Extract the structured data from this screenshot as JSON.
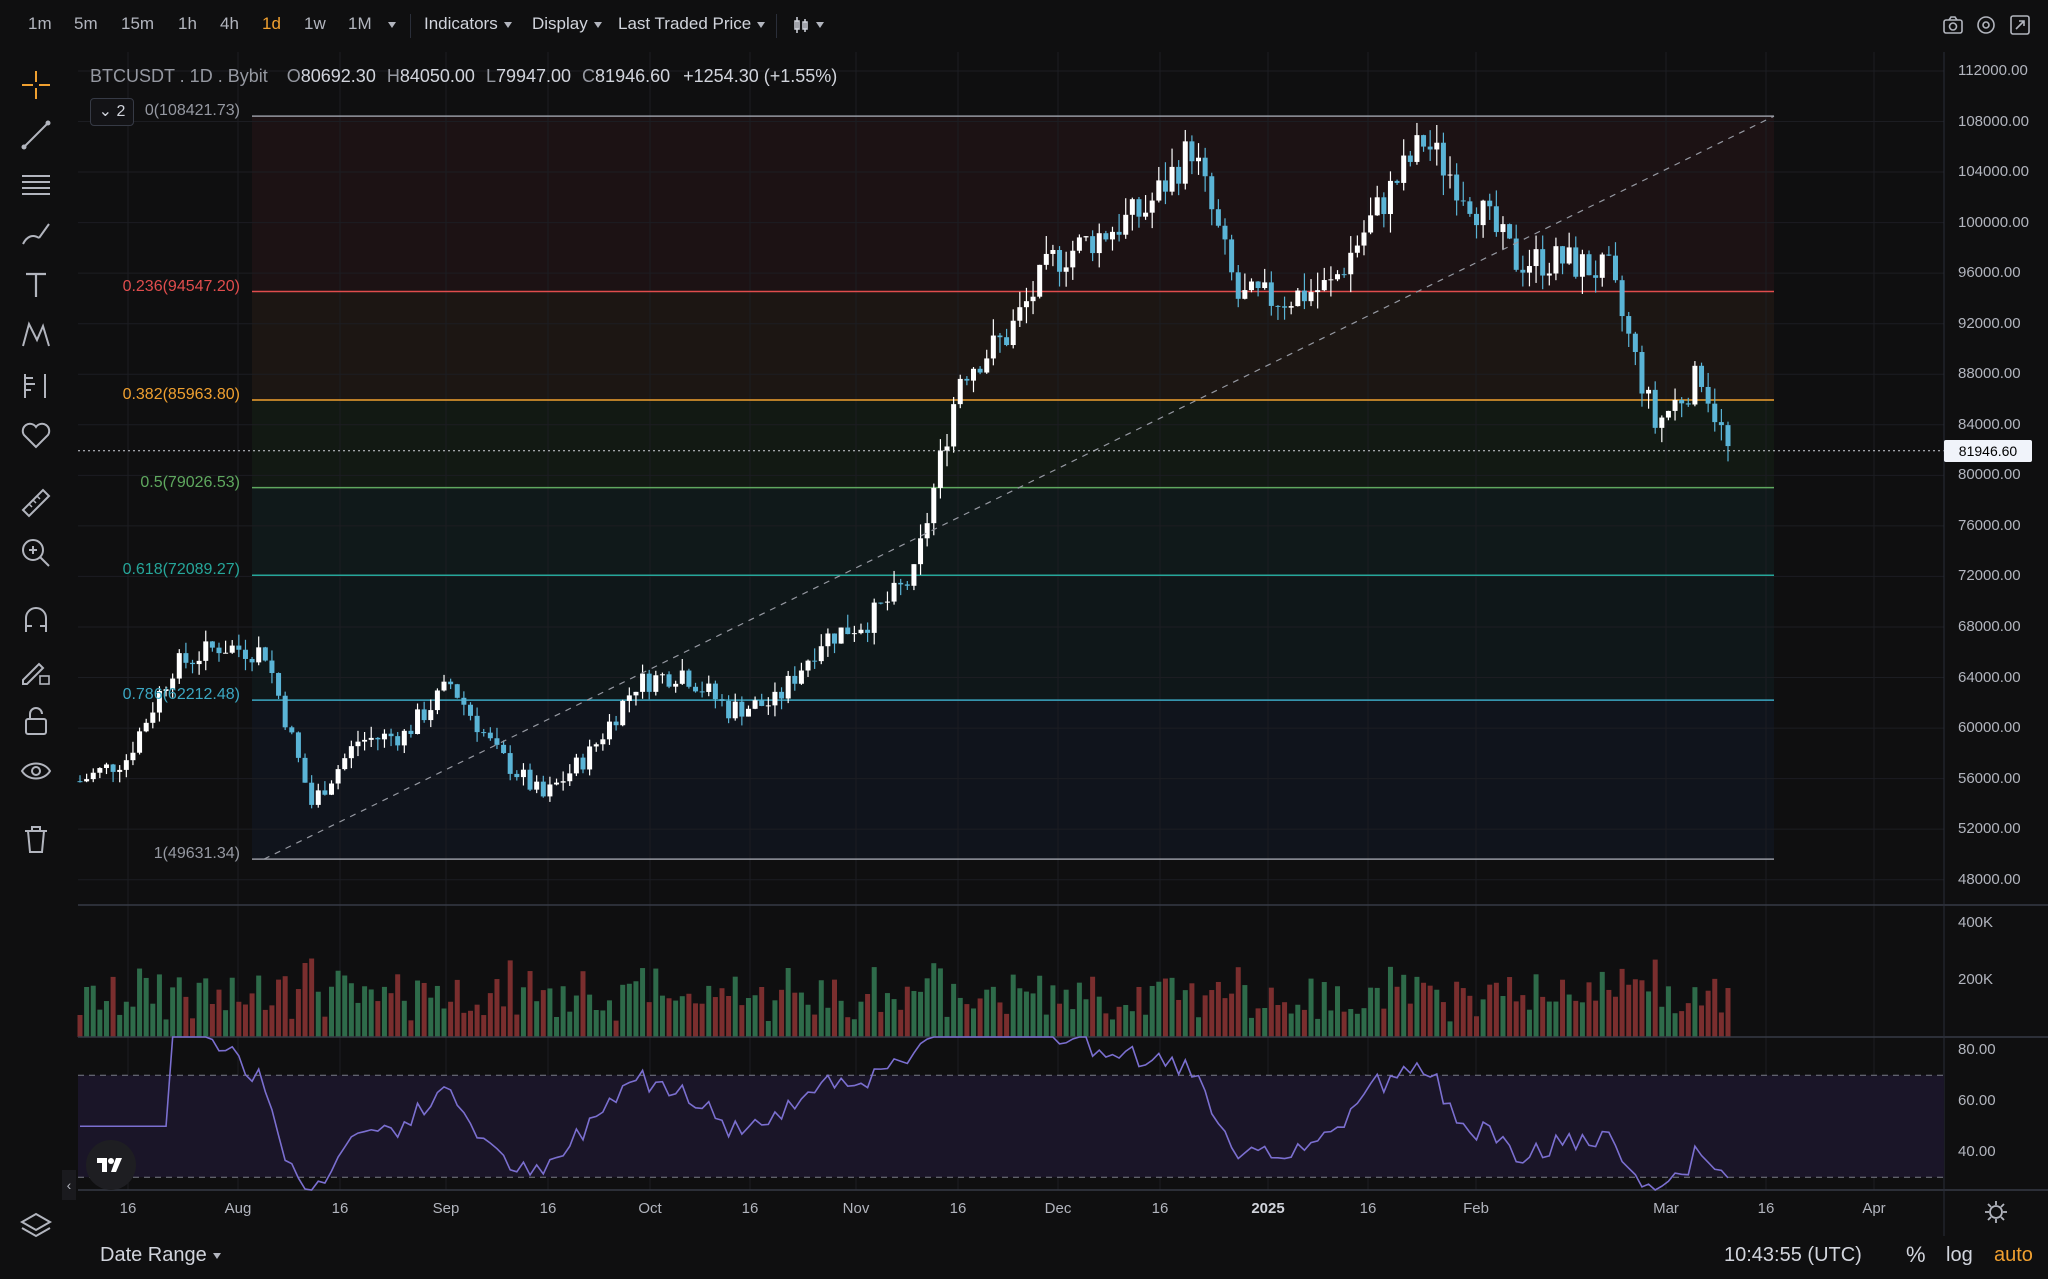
{
  "toolbar": {
    "timeframes": [
      "1m",
      "5m",
      "15m",
      "1h",
      "4h",
      "1d",
      "1w",
      "1M"
    ],
    "active_timeframe": "1d",
    "indicators_label": "Indicators",
    "display_label": "Display",
    "price_source_label": "Last Traded Price",
    "right_icons": [
      "camera-icon",
      "settings-icon",
      "fullscreen-icon"
    ]
  },
  "left_tools": [
    "crosshair-icon",
    "trend-line-icon",
    "horizontal-lines-icon",
    "brush-icon",
    "text-icon",
    "pattern-icon",
    "projection-icon",
    "favorites-icon",
    "ruler-icon",
    "zoom-icon",
    "magnet-icon",
    "lock-drawing-icon",
    "unlock-icon",
    "visibility-icon",
    "trash-icon",
    "layers-icon"
  ],
  "legend": {
    "symbol": "BTCUSDT . 1D . Bybit",
    "o_label": "O",
    "o_value": "80692.30",
    "h_label": "H",
    "h_value": "84050.00",
    "l_label": "L",
    "l_value": "79947.00",
    "c_label": "C",
    "c_value": "81946.60",
    "change": "+1254.30 (+1.55%)",
    "collapsed_count": "2"
  },
  "fib_levels": [
    {
      "label": "0(108421.73)",
      "value": 108421.73,
      "color": "#9598a1"
    },
    {
      "label": "0.236(94547.20)",
      "value": 94547.2,
      "color": "#e04d4d"
    },
    {
      "label": "0.382(85963.80)",
      "value": 85963.8,
      "color": "#f0a030"
    },
    {
      "label": "0.5(79026.53)",
      "value": 79026.53,
      "color": "#5fa85f"
    },
    {
      "label": "0.618(72089.27)",
      "value": 72089.27,
      "color": "#26a69a"
    },
    {
      "label": "0.786(62212.48)",
      "value": 62212.48,
      "color": "#3ba7c2"
    },
    {
      "label": "1(49631.34)",
      "value": 49631.34,
      "color": "#9598a1"
    }
  ],
  "price_axis": [
    "112000.00",
    "108000.00",
    "104000.00",
    "100000.00",
    "96000.00",
    "92000.00",
    "88000.00",
    "84000.00",
    "80000.00",
    "76000.00",
    "72000.00",
    "68000.00",
    "64000.00",
    "60000.00",
    "56000.00",
    "52000.00",
    "48000.00"
  ],
  "last_price_tag": "81946.60",
  "volume_axis": [
    "400K",
    "200K"
  ],
  "rsi_axis": [
    "80.00",
    "60.00",
    "40.00"
  ],
  "time_axis": [
    "16",
    "Aug",
    "16",
    "Sep",
    "16",
    "Oct",
    "16",
    "Nov",
    "16",
    "Dec",
    "16",
    "2025",
    "16",
    "Feb",
    "Mar",
    "16",
    "Apr"
  ],
  "bottom": {
    "date_range_label": "Date Range",
    "clock": "10:43:55 (UTC)",
    "percent_label": "%",
    "log_label": "log",
    "auto_label": "auto"
  },
  "colors": {
    "up": "#ffffff",
    "down": "#5ab4d6",
    "vol_up": "#2e6b4a",
    "vol_down": "#7a2e2e",
    "rsi_line": "#7b6fd0",
    "accent": "#f0a030"
  },
  "chart_data": {
    "type": "candlestick",
    "symbol": "BTCUSDT",
    "interval": "1D",
    "price_range": [
      46000,
      113500
    ],
    "fibonacci_retracement": {
      "high": 108421.73,
      "low": 49631.34
    },
    "close_series_approx": [
      [
        "2024-07-01",
        55800
      ],
      [
        "2024-07-08",
        57600
      ],
      [
        "2024-07-15",
        64800
      ],
      [
        "2024-07-22",
        66500
      ],
      [
        "2024-07-29",
        66000
      ],
      [
        "2024-08-05",
        54000
      ],
      [
        "2024-08-12",
        59000
      ],
      [
        "2024-08-19",
        59500
      ],
      [
        "2024-08-26",
        63500
      ],
      [
        "2024-09-02",
        58000
      ],
      [
        "2024-09-09",
        54500
      ],
      [
        "2024-09-16",
        58000
      ],
      [
        "2024-09-23",
        63500
      ],
      [
        "2024-09-30",
        64500
      ],
      [
        "2024-10-07",
        61500
      ],
      [
        "2024-10-14",
        62000
      ],
      [
        "2024-10-21",
        67000
      ],
      [
        "2024-10-28",
        68500
      ],
      [
        "2024-11-04",
        72000
      ],
      [
        "2024-11-11",
        88000
      ],
      [
        "2024-11-18",
        91000
      ],
      [
        "2024-11-25",
        97000
      ],
      [
        "2024-12-02",
        99000
      ],
      [
        "2024-12-09",
        101000
      ],
      [
        "2024-12-16",
        106000
      ],
      [
        "2024-12-23",
        94000
      ],
      [
        "2024-12-30",
        94000
      ],
      [
        "2025-01-06",
        95000
      ],
      [
        "2025-01-13",
        101000
      ],
      [
        "2025-01-20",
        106500
      ],
      [
        "2025-01-27",
        102000
      ],
      [
        "2025-02-03",
        97000
      ],
      [
        "2025-02-10",
        97000
      ],
      [
        "2025-02-17",
        96000
      ],
      [
        "2025-02-24",
        84000
      ],
      [
        "2025-03-03",
        88000
      ],
      [
        "2025-03-07",
        81946.6
      ]
    ],
    "rsi_range": [
      25,
      85
    ],
    "rsi_levels": [
      70,
      30
    ]
  }
}
